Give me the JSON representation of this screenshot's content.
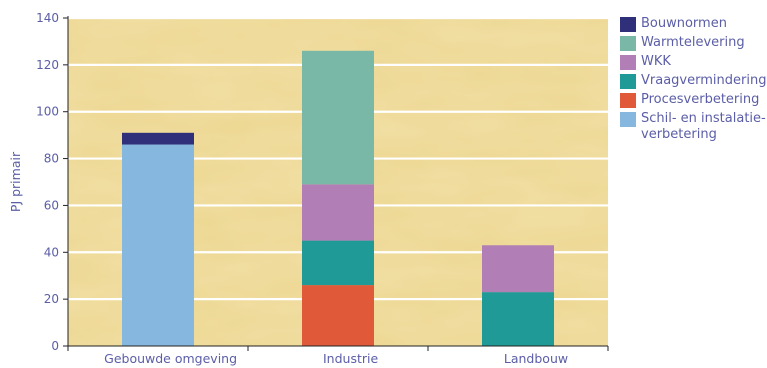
{
  "colors": {
    "axis_text": "#5b5ea6",
    "gridline": "#ffffff",
    "plot_bg_light": "#f3e2a4",
    "plot_bg_dark": "#e2c36e",
    "axis_line": "#222222"
  },
  "chart_data": {
    "type": "bar",
    "stacked": true,
    "categories": [
      "Gebouwde omgeving",
      "Industrie",
      "Landbouw"
    ],
    "series": [
      {
        "name": "Schil- en instalatie-verbetering",
        "color": "#86b7de",
        "values": [
          86,
          0,
          0
        ]
      },
      {
        "name": "Procesverbetering",
        "color": "#e05a3a",
        "values": [
          0,
          26,
          0
        ]
      },
      {
        "name": "Vraagvermindering",
        "color": "#1f9a96",
        "values": [
          0,
          19,
          23
        ]
      },
      {
        "name": "WKK",
        "color": "#b17fb6",
        "values": [
          0,
          24,
          20
        ]
      },
      {
        "name": "Warmtelevering",
        "color": "#79b7a6",
        "values": [
          0,
          57,
          0
        ]
      },
      {
        "name": "Bouwnormen",
        "color": "#2f2f7a",
        "values": [
          5,
          0,
          0
        ]
      }
    ],
    "legend_order": [
      "Bouwnormen",
      "Warmtelevering",
      "WKK",
      "Vraagvermindering",
      "Procesverbetering",
      "Schil- en instalatie-verbetering"
    ],
    "legend_lines": {
      "Bouwnormen": [
        "Bouwnormen"
      ],
      "Warmtelevering": [
        "Warmtelevering"
      ],
      "WKK": [
        "WKK"
      ],
      "Vraagvermindering": [
        "Vraagvermindering"
      ],
      "Procesverbetering": [
        "Procesverbetering"
      ],
      "Schil- en instalatie-verbetering": [
        "Schil- en instalatie-",
        "verbetering"
      ]
    },
    "ylabel": "PJ primair",
    "ylim": [
      0,
      140
    ],
    "yticks": [
      0,
      20,
      40,
      60,
      80,
      100,
      120,
      140
    ],
    "grid": true,
    "legend_position": "right"
  }
}
